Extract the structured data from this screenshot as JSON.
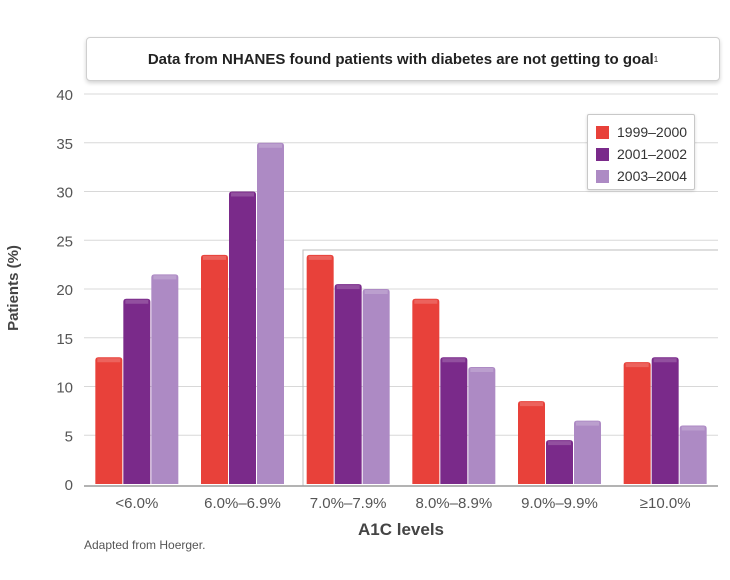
{
  "title": {
    "text": "Data from NHANES found patients with diabetes are not getting to goal",
    "sup": "1"
  },
  "footnote": "Adapted from Hoerger.",
  "colors": {
    "s1": "#e8413a",
    "s2": "#7a2a8a",
    "s3": "#ad8ac4",
    "grid": "#d8d8d8",
    "axis_text": "#555555"
  },
  "chart_data": {
    "type": "bar",
    "title": "Data from NHANES found patients with diabetes are not getting to goal",
    "xlabel": "A1C levels",
    "ylabel": "Patients (%)",
    "ylim": [
      0,
      40
    ],
    "yticks": [
      0,
      5,
      10,
      15,
      20,
      25,
      30,
      35,
      40
    ],
    "grid": true,
    "legend_position": "top-right",
    "categories": [
      "<6.0%",
      "6.0%–6.9%",
      "7.0%–7.9%",
      "8.0%–8.9%",
      "9.0%–9.9%",
      "≥10.0%"
    ],
    "series": [
      {
        "name": "1999–2000",
        "color": "#e8413a",
        "values": [
          13,
          23.5,
          23.5,
          19,
          8.5,
          12.5
        ]
      },
      {
        "name": "2001–2002",
        "color": "#7a2a8a",
        "values": [
          19,
          30,
          20.5,
          13,
          4.5,
          13
        ]
      },
      {
        "name": "2003–2004",
        "color": "#ad8ac4",
        "values": [
          21.5,
          35,
          20,
          12,
          6.5,
          6
        ]
      }
    ]
  }
}
